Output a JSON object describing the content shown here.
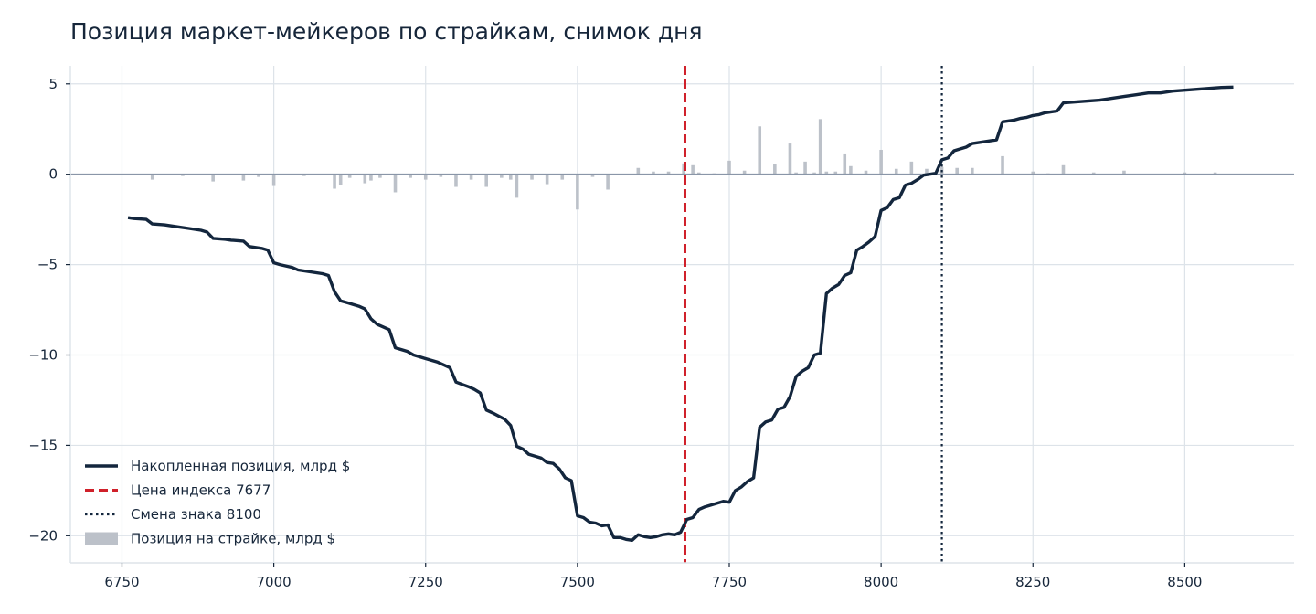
{
  "chart_data": {
    "type": "line",
    "title": "Позиция маркет-мейкеров по страйкам, снимок дня",
    "xlabel": "",
    "ylabel": "",
    "xlim": [
      6665,
      8680
    ],
    "ylim": [
      -21.5,
      6
    ],
    "x_ticks": [
      6750,
      7000,
      7250,
      7500,
      7750,
      8000,
      8250,
      8500
    ],
    "x_tick_labels": [
      "6750",
      "7000",
      "7250",
      "7500",
      "7750",
      "8000",
      "8250",
      "8500"
    ],
    "y_ticks": [
      5,
      0,
      -5,
      -10,
      -15,
      -20
    ],
    "y_tick_labels": [
      "5",
      "0",
      "−5",
      "−10",
      "−15",
      "−20"
    ],
    "grid": true,
    "legend_position": "lower-left",
    "colors": {
      "line": "#13263d",
      "spot": "#d0202a",
      "flip": "#13263d",
      "bars": "#bcc1c9",
      "grid": "#dde3e9",
      "zero": "#8a96a8"
    },
    "vlines": [
      {
        "x": 7677,
        "label": "Цена индекса 7677",
        "style": "dashed",
        "color": "#d0202a"
      },
      {
        "x": 8100,
        "label": "Смена знака 8100",
        "style": "dotted",
        "color": "#13263d"
      }
    ],
    "series": [
      {
        "name": "Накопленная позиция, млрд $",
        "kind": "line",
        "x": [
          6760,
          6770,
          6790,
          6800,
          6820,
          6840,
          6860,
          6880,
          6890,
          6900,
          6920,
          6930,
          6950,
          6960,
          6980,
          6990,
          7000,
          7010,
          7030,
          7040,
          7060,
          7080,
          7090,
          7100,
          7110,
          7120,
          7130,
          7140,
          7150,
          7160,
          7170,
          7180,
          7190,
          7200,
          7220,
          7230,
          7250,
          7270,
          7280,
          7290,
          7300,
          7320,
          7330,
          7340,
          7350,
          7360,
          7380,
          7390,
          7400,
          7410,
          7420,
          7430,
          7440,
          7450,
          7460,
          7470,
          7480,
          7490,
          7500,
          7510,
          7520,
          7530,
          7540,
          7550,
          7560,
          7570,
          7580,
          7590,
          7600,
          7610,
          7620,
          7630,
          7640,
          7650,
          7660,
          7670,
          7680,
          7690,
          7700,
          7710,
          7720,
          7730,
          7740,
          7750,
          7760,
          7770,
          7780,
          7790,
          7800,
          7810,
          7820,
          7830,
          7840,
          7850,
          7860,
          7870,
          7880,
          7890,
          7900,
          7910,
          7920,
          7930,
          7940,
          7950,
          7960,
          7970,
          7980,
          7990,
          8000,
          8010,
          8020,
          8030,
          8040,
          8050,
          8060,
          8070,
          8080,
          8090,
          8100,
          8110,
          8120,
          8130,
          8140,
          8150,
          8160,
          8170,
          8180,
          8190,
          8200,
          8210,
          8220,
          8230,
          8240,
          8250,
          8260,
          8270,
          8280,
          8290,
          8300,
          8320,
          8340,
          8360,
          8380,
          8400,
          8420,
          8440,
          8460,
          8480,
          8500,
          8520,
          8540,
          8560,
          8580
        ],
        "values": [
          -2.4,
          -2.45,
          -2.5,
          -2.75,
          -2.8,
          -2.9,
          -3.0,
          -3.1,
          -3.2,
          -3.55,
          -3.6,
          -3.65,
          -3.7,
          -4.0,
          -4.1,
          -4.2,
          -4.9,
          -5.0,
          -5.15,
          -5.3,
          -5.4,
          -5.5,
          -5.6,
          -6.5,
          -7.0,
          -7.1,
          -7.2,
          -7.3,
          -7.45,
          -8.0,
          -8.3,
          -8.45,
          -8.6,
          -9.6,
          -9.8,
          -10.0,
          -10.2,
          -10.4,
          -10.55,
          -10.7,
          -11.5,
          -11.75,
          -11.9,
          -12.1,
          -13.05,
          -13.2,
          -13.55,
          -13.9,
          -15.05,
          -15.2,
          -15.5,
          -15.6,
          -15.7,
          -15.95,
          -16.0,
          -16.3,
          -16.8,
          -16.95,
          -18.9,
          -19.0,
          -19.25,
          -19.3,
          -19.45,
          -19.4,
          -20.1,
          -20.1,
          -20.2,
          -20.25,
          -19.95,
          -20.05,
          -20.1,
          -20.05,
          -19.95,
          -19.9,
          -19.95,
          -19.8,
          -19.1,
          -19.0,
          -18.55,
          -18.4,
          -18.3,
          -18.2,
          -18.1,
          -18.15,
          -17.5,
          -17.3,
          -17.0,
          -16.8,
          -14.0,
          -13.7,
          -13.6,
          -13.0,
          -12.9,
          -12.3,
          -11.2,
          -10.9,
          -10.7,
          -10.0,
          -9.9,
          -6.6,
          -6.3,
          -6.1,
          -5.6,
          -5.45,
          -4.2,
          -4.0,
          -3.75,
          -3.45,
          -2.0,
          -1.85,
          -1.4,
          -1.3,
          -0.6,
          -0.5,
          -0.3,
          -0.05,
          0.0,
          0.05,
          0.8,
          0.9,
          1.3,
          1.4,
          1.5,
          1.7,
          1.75,
          1.8,
          1.85,
          1.9,
          2.9,
          2.95,
          3.0,
          3.1,
          3.15,
          3.25,
          3.3,
          3.4,
          3.45,
          3.5,
          3.95,
          4.0,
          4.05,
          4.1,
          4.2,
          4.3,
          4.4,
          4.5,
          4.5,
          4.6,
          4.65,
          4.7,
          4.75,
          4.8,
          4.82
        ]
      },
      {
        "name": "Позиция на страйке, млрд $",
        "kind": "bar",
        "x": [
          6800,
          6850,
          6900,
          6950,
          6975,
          7000,
          7050,
          7100,
          7110,
          7125,
          7150,
          7160,
          7175,
          7200,
          7225,
          7250,
          7275,
          7300,
          7325,
          7350,
          7375,
          7390,
          7400,
          7425,
          7450,
          7475,
          7500,
          7525,
          7550,
          7575,
          7600,
          7625,
          7650,
          7675,
          7690,
          7700,
          7725,
          7750,
          7775,
          7800,
          7825,
          7850,
          7860,
          7875,
          7890,
          7900,
          7910,
          7925,
          7940,
          7950,
          7975,
          8000,
          8025,
          8050,
          8075,
          8100,
          8125,
          8150,
          8200,
          8250,
          8275,
          8300,
          8350,
          8400,
          8500,
          8550
        ],
        "values": [
          -0.3,
          -0.1,
          -0.4,
          -0.35,
          -0.15,
          -0.65,
          -0.1,
          -0.8,
          -0.6,
          -0.2,
          -0.5,
          -0.35,
          -0.2,
          -1.0,
          -0.2,
          -0.3,
          -0.15,
          -0.7,
          -0.3,
          -0.7,
          -0.2,
          -0.3,
          -1.3,
          -0.3,
          -0.55,
          -0.3,
          -1.95,
          -0.15,
          -0.85,
          -0.05,
          0.35,
          0.15,
          0.15,
          0.6,
          0.5,
          0.1,
          0.05,
          0.75,
          0.2,
          2.65,
          0.55,
          1.7,
          0.1,
          0.7,
          0.1,
          3.05,
          0.15,
          0.15,
          1.15,
          0.45,
          0.2,
          1.35,
          0.3,
          0.7,
          0.3,
          0.4,
          0.35,
          0.35,
          1.0,
          0.15,
          0.05,
          0.5,
          0.1,
          0.2,
          0.1,
          0.1
        ]
      }
    ],
    "legend": [
      {
        "label": "Накопленная позиция, млрд $",
        "style": "line"
      },
      {
        "label": "Цена индекса 7677",
        "style": "dashed"
      },
      {
        "label": "Смена знака 8100",
        "style": "dotted"
      },
      {
        "label": "Позиция на страйке, млрд $",
        "style": "patch"
      }
    ]
  }
}
